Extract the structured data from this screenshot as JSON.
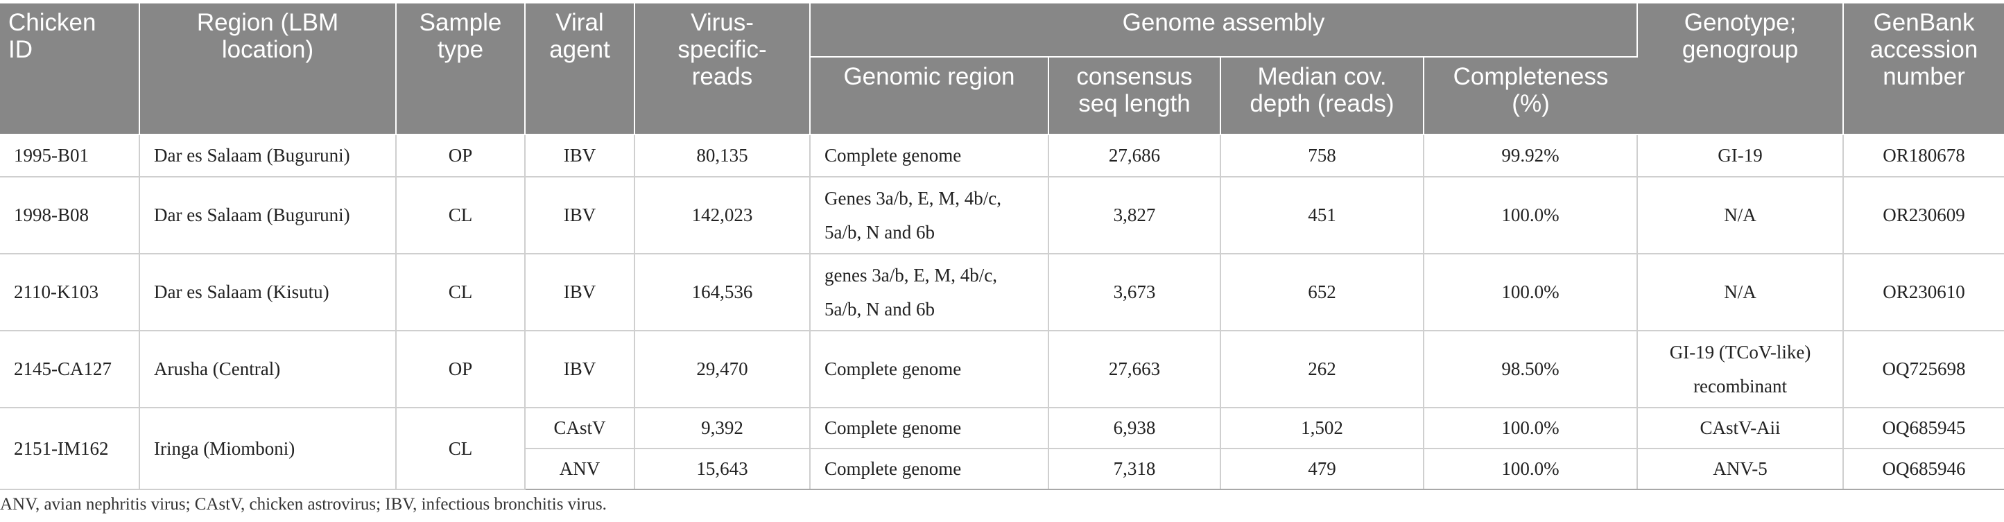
{
  "header": {
    "chicken_id": [
      "Chicken",
      "ID"
    ],
    "region": [
      "Region (LBM",
      "location)"
    ],
    "sample_type": [
      "Sample",
      "type"
    ],
    "viral_agent": [
      "Viral",
      "agent"
    ],
    "virus_reads": [
      "Virus-",
      "specific-",
      "reads"
    ],
    "genome_assembly": "Genome assembly",
    "genomic_region": "Genomic region",
    "consensus": [
      "consensus",
      "seq length"
    ],
    "median": [
      "Median cov.",
      "depth (reads)"
    ],
    "completeness": [
      "Completeness",
      "(%)"
    ],
    "genotype": [
      "Genotype;",
      "genogroup"
    ],
    "genbank": [
      "GenBank",
      "accession",
      "number"
    ]
  },
  "rows": [
    {
      "id": "1995-B01",
      "region": "Dar es Salaam (Buguruni)",
      "sample": "OP",
      "agent": "IBV",
      "reads": "80,135",
      "genomic": [
        "Complete genome"
      ],
      "length": "27,686",
      "depth": "758",
      "completeness": "99.92%",
      "genotype": [
        "GI-19"
      ],
      "accession": "OR180678"
    },
    {
      "id": "1998-B08",
      "region": "Dar es Salaam (Buguruni)",
      "sample": "CL",
      "agent": "IBV",
      "reads": "142,023",
      "genomic": [
        "Genes 3a/b, E, M, 4b/c,",
        "5a/b, N and 6b"
      ],
      "length": "3,827",
      "depth": "451",
      "completeness": "100.0%",
      "genotype": [
        "N/A"
      ],
      "accession": "OR230609"
    },
    {
      "id": "2110-K103",
      "region": "Dar es Salaam (Kisutu)",
      "sample": "CL",
      "agent": "IBV",
      "reads": "164,536",
      "genomic": [
        "genes 3a/b, E, M, 4b/c,",
        "5a/b, N and 6b"
      ],
      "length": "3,673",
      "depth": "652",
      "completeness": "100.0%",
      "genotype": [
        "N/A"
      ],
      "accession": "OR230610"
    },
    {
      "id": "2145-CA127",
      "region": "Arusha (Central)",
      "sample": "OP",
      "agent": "IBV",
      "reads": "29,470",
      "genomic": [
        "Complete genome"
      ],
      "length": "27,663",
      "depth": "262",
      "completeness": "98.50%",
      "genotype": [
        "GI-19 (TCoV-like)",
        "recombinant"
      ],
      "accession": "OQ725698"
    },
    {
      "id": "2151-IM162",
      "region": "Iringa (Miomboni)",
      "sample": "CL",
      "agent": "CAstV",
      "reads": "9,392",
      "genomic": [
        "Complete genome"
      ],
      "length": "6,938",
      "depth": "1,502",
      "completeness": "100.0%",
      "genotype": [
        "CAstV-Aii"
      ],
      "accession": "OQ685945"
    },
    {
      "agent": "ANV",
      "reads": "15,643",
      "genomic": [
        "Complete genome"
      ],
      "length": "7,318",
      "depth": "479",
      "completeness": "100.0%",
      "genotype": [
        "ANV-5"
      ],
      "accession": "OQ685946"
    }
  ],
  "footnote": "ANV, avian nephritis virus; CAstV, chicken astrovirus; IBV, infectious bronchitis virus."
}
